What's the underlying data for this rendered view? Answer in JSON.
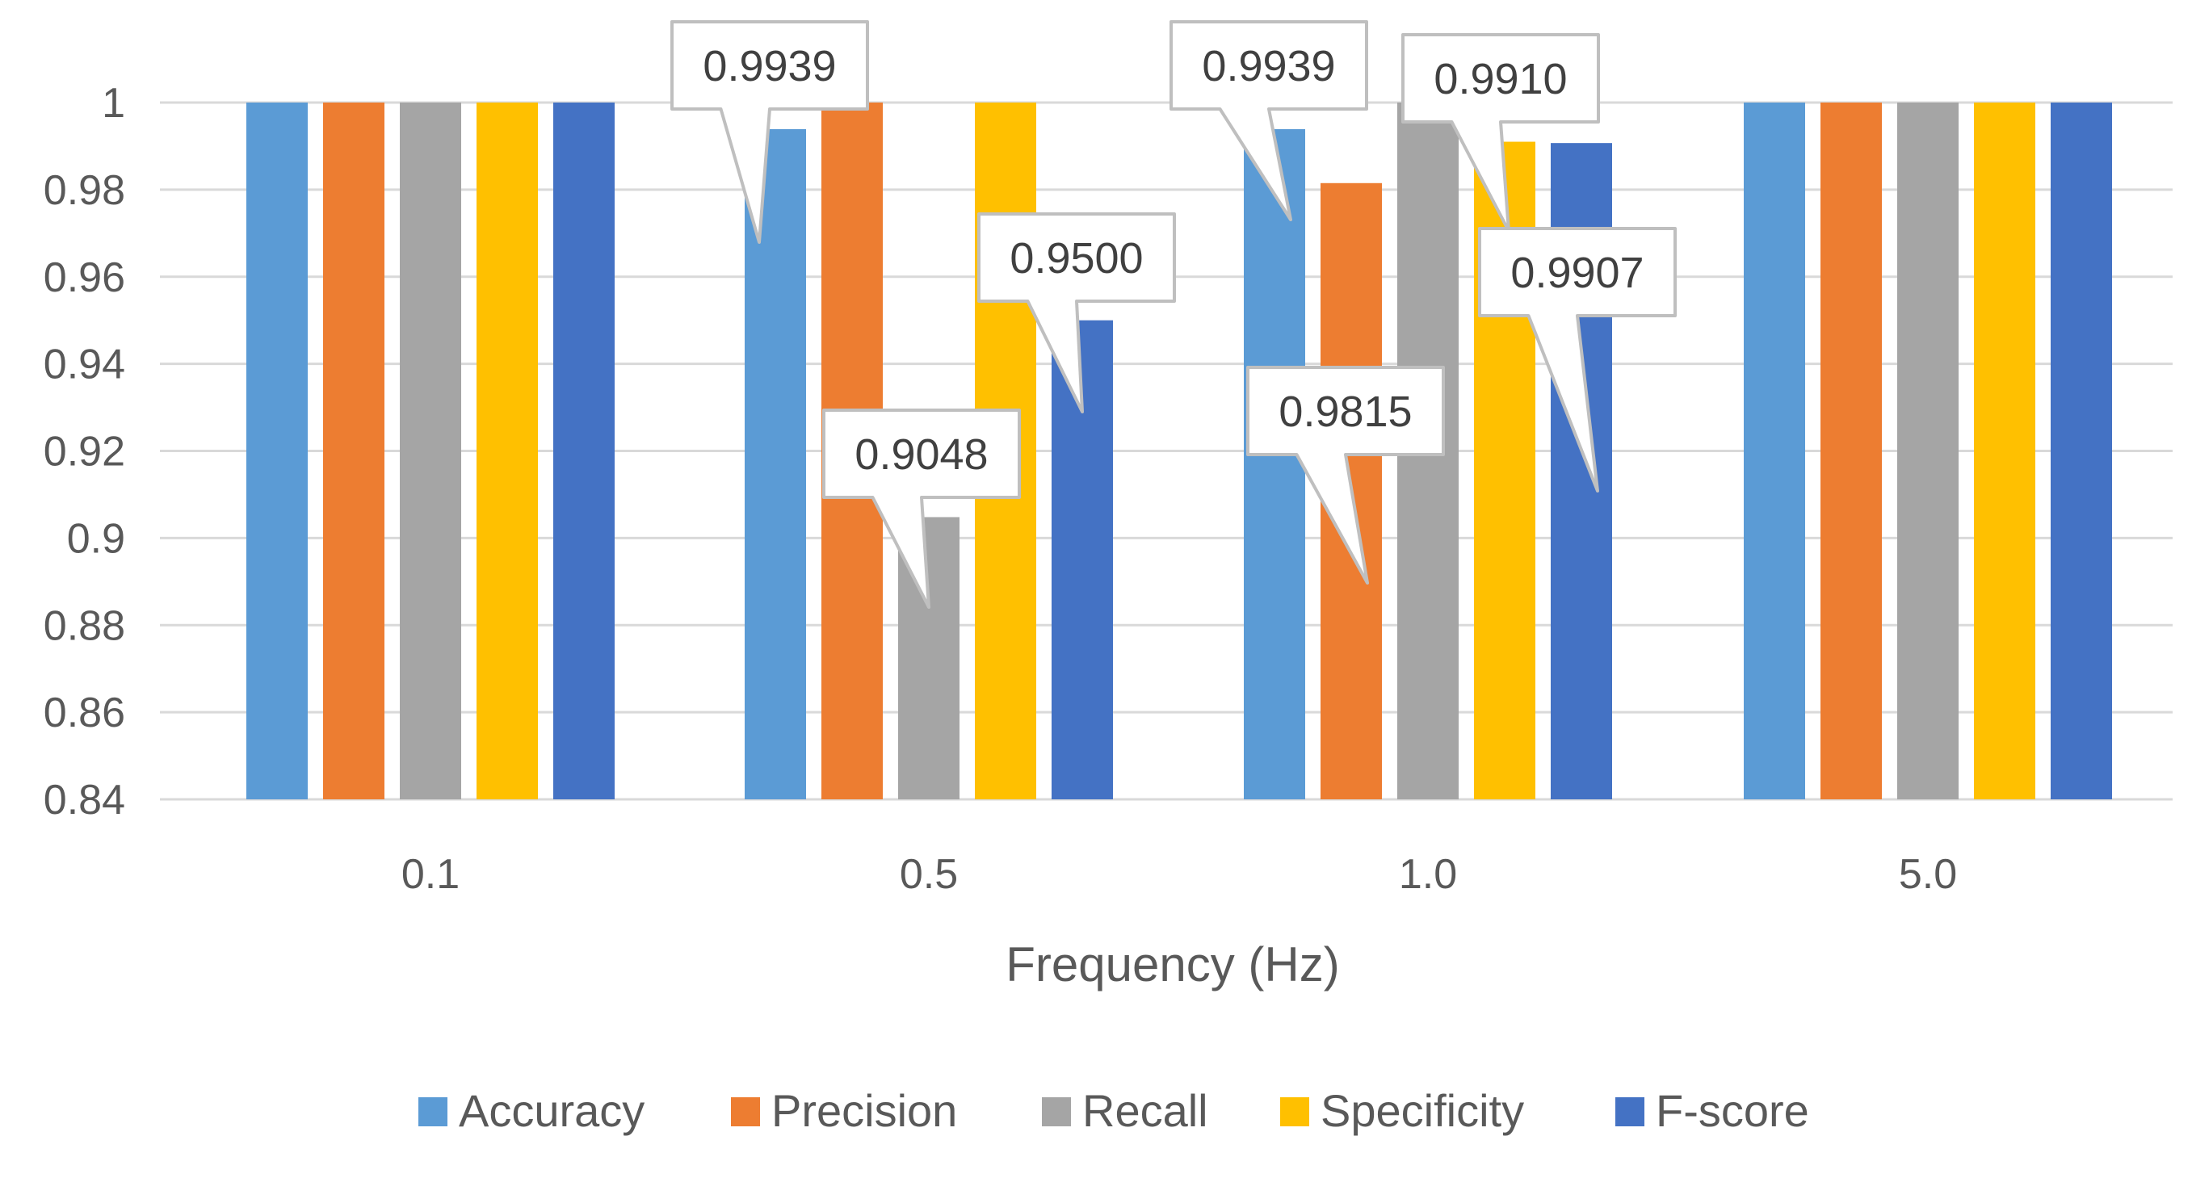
{
  "chart_data": {
    "type": "bar",
    "title": "",
    "xlabel": "Frequency (Hz)",
    "ylabel": "",
    "categories": [
      "0.1",
      "0.5",
      "1.0",
      "5.0"
    ],
    "ylim": [
      0.84,
      1.0
    ],
    "yticks": [
      0.84,
      0.86,
      0.88,
      0.9,
      0.92,
      0.94,
      0.96,
      0.98,
      1.0
    ],
    "ytick_labels": [
      "0.84",
      "0.86",
      "0.88",
      "0.9",
      "0.92",
      "0.94",
      "0.96",
      "0.98",
      "1"
    ],
    "grid": true,
    "legend_position": "bottom",
    "series": [
      {
        "name": "Accuracy",
        "color": "#5B9BD5",
        "values": [
          1.0,
          0.9939,
          0.9939,
          1.0
        ]
      },
      {
        "name": "Precision",
        "color": "#ED7D31",
        "values": [
          1.0,
          1.0,
          0.9815,
          1.0
        ]
      },
      {
        "name": "Recall",
        "color": "#A5A5A5",
        "values": [
          1.0,
          0.9048,
          1.0,
          1.0
        ]
      },
      {
        "name": "Specificity",
        "color": "#FFC000",
        "values": [
          1.0,
          1.0,
          0.991,
          1.0
        ]
      },
      {
        "name": "F-score",
        "color": "#4472C4",
        "values": [
          1.0,
          0.95,
          0.9907,
          1.0
        ]
      }
    ],
    "annotations": [
      {
        "text": "0.9939",
        "category": "0.5",
        "series": "Accuracy"
      },
      {
        "text": "0.9048",
        "category": "0.5",
        "series": "Recall"
      },
      {
        "text": "0.9500",
        "category": "0.5",
        "series": "F-score"
      },
      {
        "text": "0.9939",
        "category": "1.0",
        "series": "Accuracy"
      },
      {
        "text": "0.9815",
        "category": "1.0",
        "series": "Precision"
      },
      {
        "text": "0.9910",
        "category": "1.0",
        "series": "Specificity"
      },
      {
        "text": "0.9907",
        "category": "1.0",
        "series": "F-score"
      }
    ]
  }
}
